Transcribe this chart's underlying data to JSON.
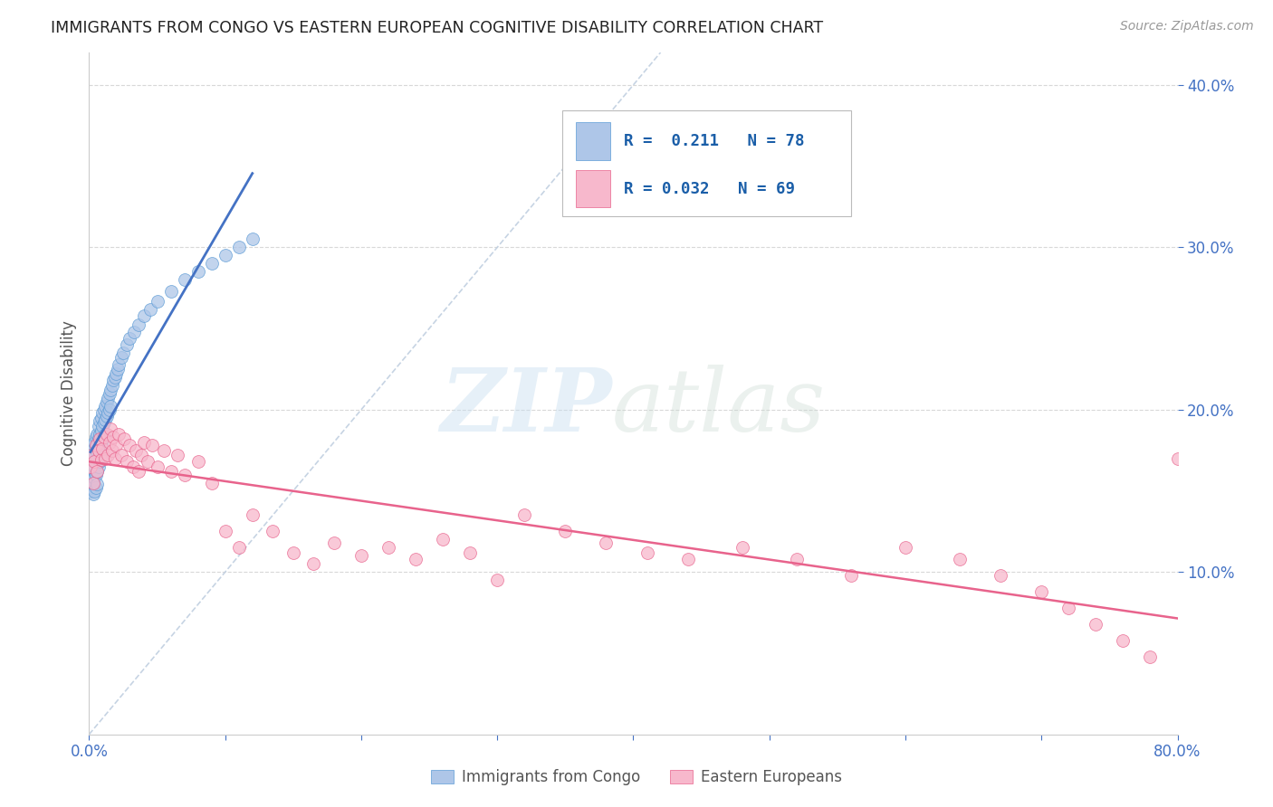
{
  "title": "IMMIGRANTS FROM CONGO VS EASTERN EUROPEAN COGNITIVE DISABILITY CORRELATION CHART",
  "source": "Source: ZipAtlas.com",
  "ylabel": "Cognitive Disability",
  "x_min": 0.0,
  "x_max": 0.8,
  "y_min": 0.0,
  "y_max": 0.42,
  "congo_R": 0.211,
  "congo_N": 78,
  "eastern_R": 0.032,
  "eastern_N": 69,
  "congo_color": "#aec6e8",
  "congo_edge_color": "#5b9bd5",
  "eastern_color": "#f7b8cc",
  "eastern_edge_color": "#e8638c",
  "congo_line_color": "#4472c4",
  "eastern_line_color": "#e8638c",
  "ref_line_color": "#c0cfe0",
  "background_color": "#ffffff",
  "grid_color": "#d8d8d8",
  "congo_x": [
    0.001,
    0.001,
    0.001,
    0.002,
    0.002,
    0.002,
    0.002,
    0.003,
    0.003,
    0.003,
    0.003,
    0.003,
    0.004,
    0.004,
    0.004,
    0.004,
    0.004,
    0.005,
    0.005,
    0.005,
    0.005,
    0.005,
    0.006,
    0.006,
    0.006,
    0.006,
    0.006,
    0.007,
    0.007,
    0.007,
    0.007,
    0.008,
    0.008,
    0.008,
    0.008,
    0.009,
    0.009,
    0.009,
    0.01,
    0.01,
    0.01,
    0.01,
    0.011,
    0.011,
    0.011,
    0.012,
    0.012,
    0.012,
    0.013,
    0.013,
    0.014,
    0.014,
    0.015,
    0.015,
    0.016,
    0.016,
    0.017,
    0.018,
    0.019,
    0.02,
    0.021,
    0.022,
    0.024,
    0.025,
    0.028,
    0.03,
    0.033,
    0.036,
    0.04,
    0.045,
    0.05,
    0.06,
    0.07,
    0.08,
    0.09,
    0.1,
    0.11,
    0.12
  ],
  "congo_y": [
    0.17,
    0.16,
    0.15,
    0.175,
    0.168,
    0.16,
    0.152,
    0.178,
    0.17,
    0.163,
    0.155,
    0.148,
    0.18,
    0.172,
    0.165,
    0.158,
    0.15,
    0.183,
    0.175,
    0.168,
    0.16,
    0.152,
    0.185,
    0.178,
    0.17,
    0.162,
    0.154,
    0.19,
    0.182,
    0.175,
    0.165,
    0.193,
    0.185,
    0.177,
    0.168,
    0.195,
    0.187,
    0.178,
    0.198,
    0.19,
    0.182,
    0.172,
    0.2,
    0.192,
    0.183,
    0.202,
    0.194,
    0.185,
    0.205,
    0.196,
    0.207,
    0.198,
    0.21,
    0.2,
    0.212,
    0.202,
    0.215,
    0.218,
    0.22,
    0.222,
    0.225,
    0.228,
    0.232,
    0.235,
    0.24,
    0.244,
    0.248,
    0.252,
    0.258,
    0.262,
    0.267,
    0.273,
    0.28,
    0.285,
    0.29,
    0.295,
    0.3,
    0.305
  ],
  "eastern_x": [
    0.001,
    0.002,
    0.003,
    0.004,
    0.005,
    0.006,
    0.007,
    0.008,
    0.009,
    0.01,
    0.011,
    0.012,
    0.013,
    0.014,
    0.015,
    0.016,
    0.017,
    0.018,
    0.019,
    0.02,
    0.022,
    0.024,
    0.026,
    0.028,
    0.03,
    0.032,
    0.034,
    0.036,
    0.038,
    0.04,
    0.043,
    0.046,
    0.05,
    0.055,
    0.06,
    0.065,
    0.07,
    0.08,
    0.09,
    0.1,
    0.11,
    0.12,
    0.135,
    0.15,
    0.165,
    0.18,
    0.2,
    0.22,
    0.24,
    0.26,
    0.28,
    0.3,
    0.32,
    0.35,
    0.38,
    0.41,
    0.44,
    0.48,
    0.52,
    0.56,
    0.6,
    0.64,
    0.67,
    0.7,
    0.72,
    0.74,
    0.76,
    0.78,
    0.8
  ],
  "eastern_y": [
    0.165,
    0.172,
    0.155,
    0.168,
    0.178,
    0.162,
    0.175,
    0.182,
    0.169,
    0.176,
    0.183,
    0.17,
    0.185,
    0.172,
    0.18,
    0.188,
    0.175,
    0.183,
    0.17,
    0.178,
    0.185,
    0.172,
    0.182,
    0.168,
    0.178,
    0.165,
    0.175,
    0.162,
    0.172,
    0.18,
    0.168,
    0.178,
    0.165,
    0.175,
    0.162,
    0.172,
    0.16,
    0.168,
    0.155,
    0.125,
    0.115,
    0.135,
    0.125,
    0.112,
    0.105,
    0.118,
    0.11,
    0.115,
    0.108,
    0.12,
    0.112,
    0.095,
    0.135,
    0.125,
    0.118,
    0.112,
    0.108,
    0.115,
    0.108,
    0.098,
    0.115,
    0.108,
    0.098,
    0.088,
    0.078,
    0.068,
    0.058,
    0.048,
    0.17
  ]
}
